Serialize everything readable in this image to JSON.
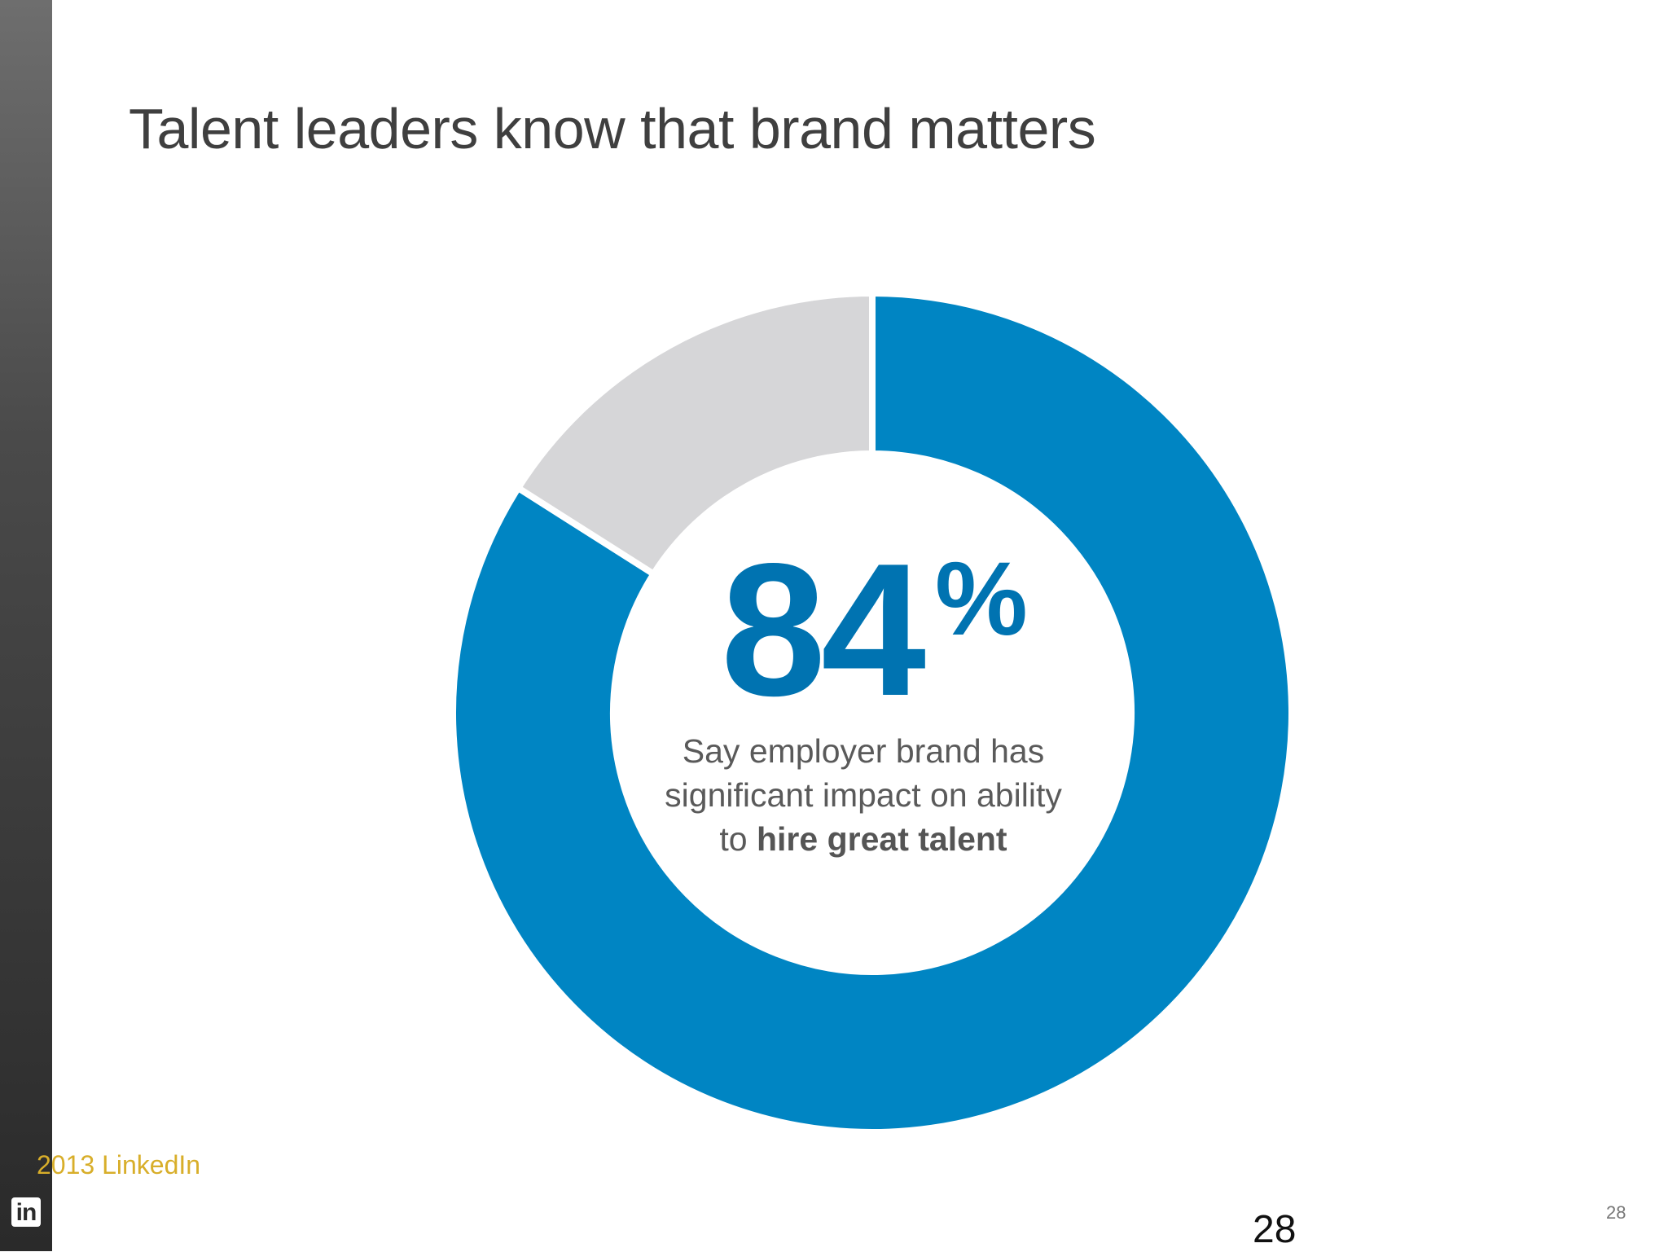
{
  "slide": {
    "title": "Talent leaders know that brand matters",
    "stat_number": "84",
    "stat_suffix": "%",
    "caption_plain": "Say employer brand has significant impact on ability to ",
    "caption_bold": "hire great talent",
    "copyright": "2013 LinkedIn",
    "logo_text": "in",
    "page_number": "28",
    "page_number_small": "28"
  },
  "colors": {
    "accent": "#0085c3",
    "remainder": "#d6d6d8",
    "stat": "#0073b1"
  },
  "chart_data": {
    "type": "pie",
    "donut": true,
    "title": "",
    "slices": [
      {
        "value": 84,
        "color": "#0085c3"
      },
      {
        "value": 16,
        "color": "#d6d6d8"
      }
    ],
    "start": "12 o'clock",
    "direction": "clockwise"
  }
}
